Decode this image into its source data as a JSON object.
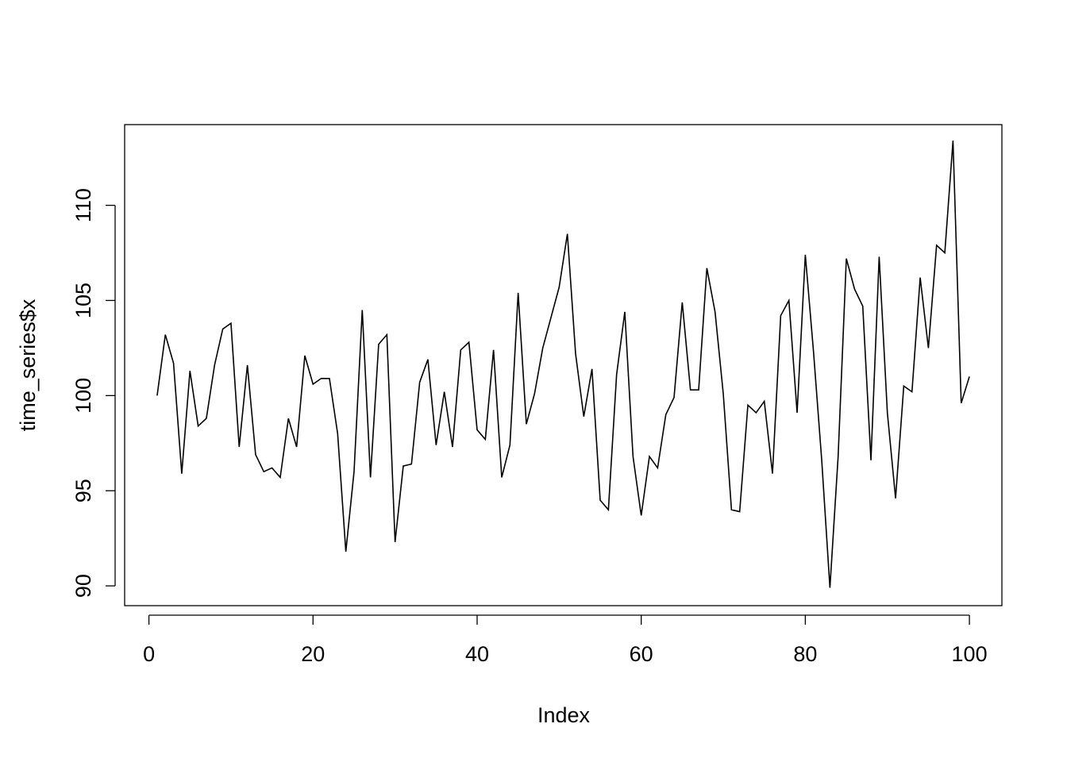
{
  "chart_data": {
    "type": "line",
    "xlabel": "Index",
    "ylabel": "time_series$x",
    "x": [
      1,
      2,
      3,
      4,
      5,
      6,
      7,
      8,
      9,
      10,
      11,
      12,
      13,
      14,
      15,
      16,
      17,
      18,
      19,
      20,
      21,
      22,
      23,
      24,
      25,
      26,
      27,
      28,
      29,
      30,
      31,
      32,
      33,
      34,
      35,
      36,
      37,
      38,
      39,
      40,
      41,
      42,
      43,
      44,
      45,
      46,
      47,
      48,
      49,
      50,
      51,
      52,
      53,
      54,
      55,
      56,
      57,
      58,
      59,
      60,
      61,
      62,
      63,
      64,
      65,
      66,
      67,
      68,
      69,
      70,
      71,
      72,
      73,
      74,
      75,
      76,
      77,
      78,
      79,
      80,
      81,
      82,
      83,
      84,
      85,
      86,
      87,
      88,
      89,
      90,
      91,
      92,
      93,
      94,
      95,
      96,
      97,
      98,
      99,
      100
    ],
    "series": [
      {
        "color": "#000000",
        "values": [
          100.0,
          103.2,
          101.7,
          95.9,
          101.3,
          98.4,
          98.8,
          101.6,
          103.5,
          103.8,
          97.3,
          101.6,
          96.9,
          96.0,
          96.2,
          95.7,
          98.8,
          97.3,
          102.1,
          100.6,
          100.9,
          100.9,
          98.0,
          91.8,
          96.0,
          104.5,
          95.7,
          102.7,
          103.2,
          92.3,
          96.3,
          96.4,
          100.7,
          101.9,
          97.4,
          100.2,
          97.3,
          102.4,
          102.8,
          98.2,
          97.7,
          102.4,
          95.7,
          97.4,
          105.4,
          98.5,
          100.1,
          102.5,
          104.1,
          105.7,
          108.5,
          102.2,
          98.9,
          101.4,
          94.5,
          94.0,
          101.1,
          104.4,
          96.8,
          93.7,
          96.8,
          96.2,
          99.0,
          99.9,
          104.9,
          100.3,
          100.3,
          106.7,
          104.4,
          100.1,
          94.0,
          93.9,
          99.5,
          99.1,
          99.7,
          95.9,
          104.2,
          105.0,
          99.1,
          107.4,
          102.3,
          96.6,
          89.9,
          96.8,
          107.2,
          105.6,
          104.7,
          96.6,
          107.3,
          99.1,
          94.6,
          100.5,
          100.2,
          106.2,
          102.5,
          107.9,
          107.5,
          113.4,
          99.6,
          101.0
        ]
      }
    ],
    "xlim": [
      -2.96,
      103.96
    ],
    "xticks": [
      0,
      20,
      40,
      60,
      80,
      100
    ],
    "ylim": [
      88.96,
      114.24
    ],
    "yticks": [
      90,
      95,
      100,
      105,
      110
    ]
  }
}
